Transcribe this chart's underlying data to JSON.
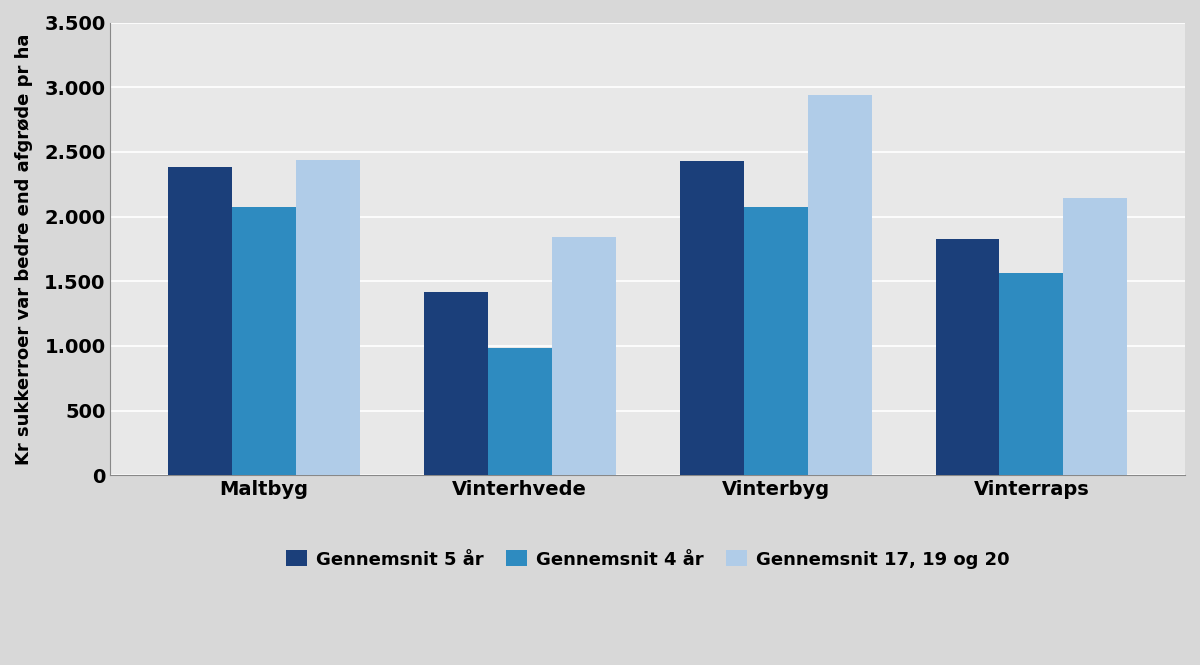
{
  "categories": [
    "Maltbyg",
    "Vinterhvede",
    "Vinterbyg",
    "Vinterraps"
  ],
  "series": {
    "Gennemsnit 5 år": [
      2380,
      1420,
      2430,
      1830
    ],
    "Gennemsnit 4 år": [
      2070,
      980,
      2070,
      1560
    ],
    "Gennemsnit 17, 19 og 20": [
      2440,
      1840,
      2940,
      2140
    ]
  },
  "colors": {
    "Gennemsnit 5 år": "#1b3f7a",
    "Gennemsnit 4 år": "#2e8bc0",
    "Gennemsnit 17, 19 og 20": "#b0cce8"
  },
  "ylabel": "Kr sukkerroer var bedre end afgrøde pr ha",
  "ylim": [
    0,
    3500
  ],
  "yticks": [
    0,
    500,
    1000,
    1500,
    2000,
    2500,
    3000,
    3500
  ],
  "ytick_labels": [
    "0",
    "500",
    "1.000",
    "1.500",
    "2.000",
    "2.500",
    "3.000",
    "3.500"
  ],
  "figure_background_color": "#d8d8d8",
  "plot_background_color": "#e8e8e8",
  "grid_color": "#ffffff",
  "bar_width": 0.25,
  "legend_ncol": 3,
  "font_size_axis_labels": 14,
  "font_size_ticks": 14,
  "font_size_legend": 13,
  "font_size_ylabel": 13,
  "font_weight_ticks": "bold",
  "font_weight_axis": "bold",
  "font_weight_legend": "bold"
}
